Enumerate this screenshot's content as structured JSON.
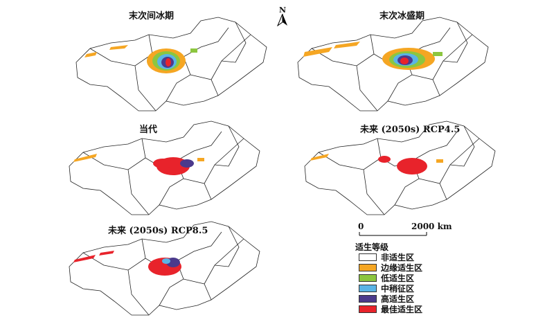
{
  "panels": [
    {
      "title": "末次间冰期"
    },
    {
      "title": "末次冰盛期"
    },
    {
      "title": "当代"
    },
    {
      "title": "未来 (2050s) RCP4.5"
    },
    {
      "title": "未来 (2050s) RCP8.5"
    }
  ],
  "north_arrow": {
    "label": "N"
  },
  "scale_bar": {
    "start": "0",
    "end": "2000 km"
  },
  "legend": {
    "title": "适生等级",
    "items": [
      {
        "label": "非适生区",
        "color": "#ffffff"
      },
      {
        "label": "边缘适生区",
        "color": "#f5a623"
      },
      {
        "label": "低适生区",
        "color": "#8cc63f"
      },
      {
        "label": "中稍征区",
        "color": "#5ab4e5"
      },
      {
        "label": "高适生区",
        "color": "#4b3a8c"
      },
      {
        "label": "最佳适生区",
        "color": "#e8232b"
      }
    ]
  }
}
